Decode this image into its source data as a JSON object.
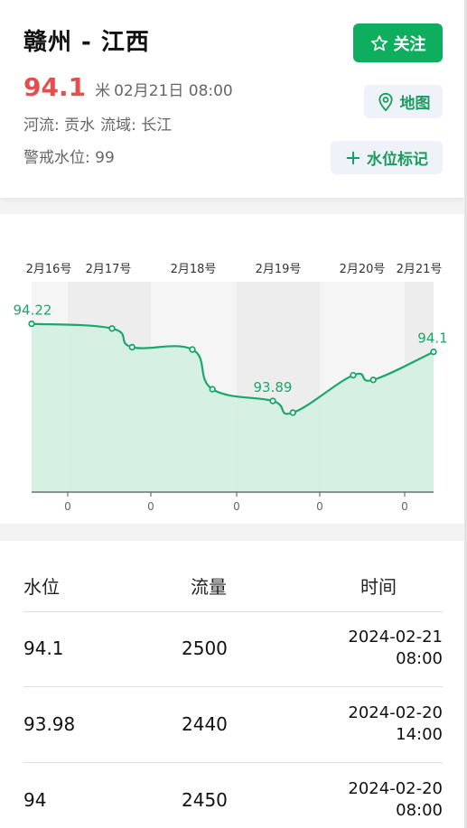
{
  "station": {
    "title": "赣州 - 江西",
    "level": "94.1",
    "unit": "米",
    "time": "02月21日 08:00",
    "river": "河流: 贡水",
    "basin": "流域: 长江",
    "warning": "警戒水位: 99"
  },
  "buttons": {
    "follow": "关注",
    "map": "地图",
    "mark": "水位标记"
  },
  "chart_data": {
    "type": "area",
    "x_tick_labels": [
      "2月16号",
      "2月17号",
      "2月18号",
      "2月19号",
      "2月20号",
      "2月21号"
    ],
    "y_tick_labels": [
      "0",
      "0",
      "0",
      "0",
      "0"
    ],
    "points": [
      {
        "x": "2024-02-16 08:00",
        "y": 94.22
      },
      {
        "x": "2024-02-17 08:00",
        "y": 94.2
      },
      {
        "x": "2024-02-17 14:00",
        "y": 94.12
      },
      {
        "x": "2024-02-18 08:00",
        "y": 94.11
      },
      {
        "x": "2024-02-18 14:00",
        "y": 93.94
      },
      {
        "x": "2024-02-19 08:00",
        "y": 93.89
      },
      {
        "x": "2024-02-19 14:00",
        "y": 93.84
      },
      {
        "x": "2024-02-20 08:00",
        "y": 94.0
      },
      {
        "x": "2024-02-20 14:00",
        "y": 93.98
      },
      {
        "x": "2024-02-21 08:00",
        "y": 94.1
      }
    ],
    "point_labels": [
      {
        "index": 0,
        "text": "94.22"
      },
      {
        "index": 5,
        "text": "93.89"
      },
      {
        "index": 9,
        "text": "94.1"
      }
    ],
    "ylim": [
      93.5,
      94.4
    ],
    "line_color": "#1aa86a",
    "fill_color": "#d4f0e1"
  },
  "table": {
    "headers": [
      "水位",
      "流量",
      "时间"
    ],
    "rows": [
      {
        "level": "94.1",
        "flow": "2500",
        "date": "2024-02-21",
        "time": "08:00"
      },
      {
        "level": "93.98",
        "flow": "2440",
        "date": "2024-02-20",
        "time": "14:00"
      },
      {
        "level": "94",
        "flow": "2450",
        "date": "2024-02-20",
        "time": "08:00"
      }
    ]
  }
}
